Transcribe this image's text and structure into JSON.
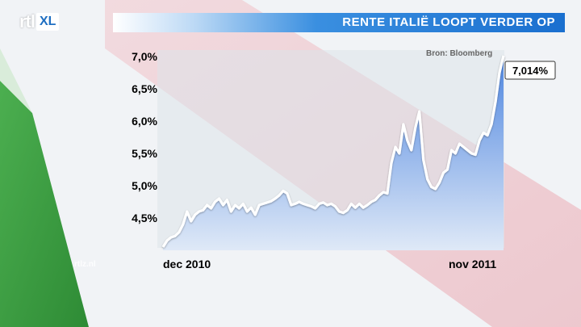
{
  "logo": {
    "rtl": "rtl",
    "xl": "XL"
  },
  "header": {
    "title": "RENTE ITALIË LOOPT VERDER OP"
  },
  "source": "Bron: Bloomberg",
  "watermark": "rtlz.nl",
  "colors": {
    "area_top": "#4f86e0",
    "area_bottom": "#dfe9f7",
    "line": "#ffffff",
    "accent_blue": "#1a6fcf"
  },
  "chart_data": {
    "type": "area",
    "title": "RENTE ITALIË LOOPT VERDER OP",
    "xlabel": "",
    "ylabel": "",
    "x_start_label": "dec 2010",
    "x_end_label": "nov 2011",
    "yticks": [
      "4,5%",
      "5,0%",
      "5,5%",
      "6,0%",
      "6,5%",
      "7,0%"
    ],
    "ylim": [
      4.0,
      7.1
    ],
    "last_value_label": "7,014%",
    "grid": false,
    "values": [
      4.05,
      4.15,
      4.2,
      4.22,
      4.28,
      4.4,
      4.6,
      4.45,
      4.55,
      4.6,
      4.62,
      4.7,
      4.65,
      4.75,
      4.8,
      4.7,
      4.78,
      4.6,
      4.7,
      4.65,
      4.72,
      4.6,
      4.66,
      4.55,
      4.7,
      4.72,
      4.74,
      4.76,
      4.8,
      4.85,
      4.92,
      4.88,
      4.7,
      4.72,
      4.75,
      4.72,
      4.7,
      4.68,
      4.65,
      4.72,
      4.74,
      4.7,
      4.72,
      4.68,
      4.6,
      4.58,
      4.62,
      4.72,
      4.66,
      4.72,
      4.66,
      4.7,
      4.75,
      4.78,
      4.85,
      4.9,
      4.88,
      5.35,
      5.6,
      5.5,
      5.95,
      5.7,
      5.55,
      5.9,
      6.15,
      5.4,
      5.1,
      4.98,
      4.95,
      5.05,
      5.2,
      5.25,
      5.55,
      5.5,
      5.65,
      5.6,
      5.55,
      5.5,
      5.48,
      5.7,
      5.82,
      5.78,
      5.95,
      6.3,
      6.75,
      7.014
    ]
  }
}
